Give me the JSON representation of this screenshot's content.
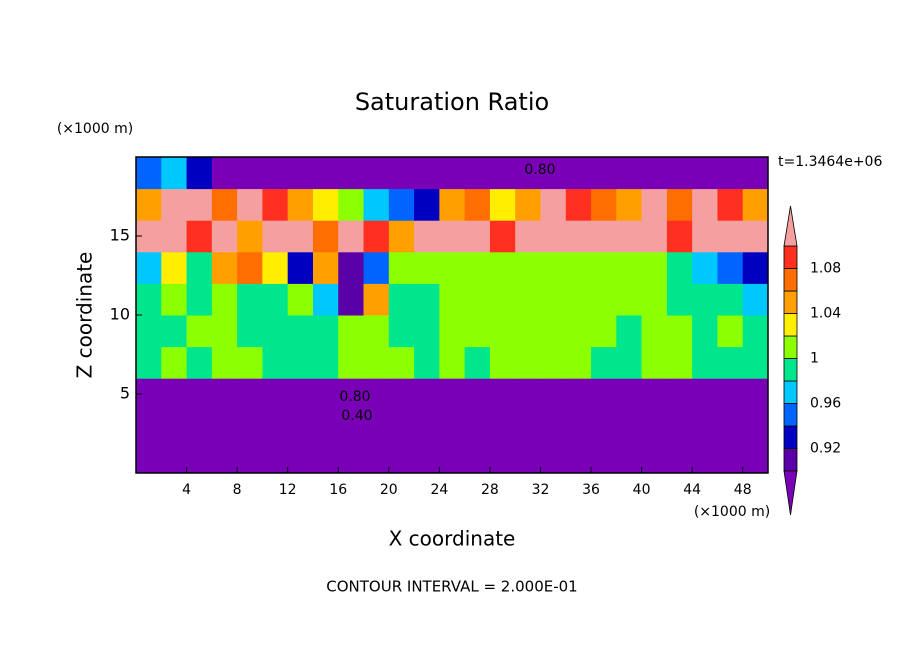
{
  "chart_data": {
    "type": "contour",
    "title": "Saturation Ratio",
    "xlabel": "X coordinate",
    "ylabel": "Z coordinate",
    "x_unit": "(×1000 m)",
    "y_unit": "(×1000 m)",
    "time_label": "t=1.3464e+06",
    "footer": "CONTOUR INTERVAL = 2.000E-01",
    "xlim": [
      0,
      50
    ],
    "ylim": [
      0,
      20
    ],
    "xticks": [
      4,
      8,
      12,
      16,
      20,
      24,
      28,
      32,
      36,
      40,
      44,
      48
    ],
    "yticks": [
      5,
      10,
      15
    ],
    "x": [
      1,
      3,
      5,
      7,
      9,
      11,
      13,
      15,
      17,
      19,
      21,
      23,
      25,
      27,
      29,
      31,
      33,
      35,
      37,
      39,
      41,
      43,
      45,
      47,
      49
    ],
    "z": [
      1,
      3,
      5,
      7,
      9,
      11,
      13,
      15,
      17,
      19
    ],
    "values": [
      [
        0.3,
        0.3,
        0.3,
        0.3,
        0.3,
        0.3,
        0.3,
        0.3,
        0.3,
        0.3,
        0.3,
        0.3,
        0.3,
        0.3,
        0.3,
        0.3,
        0.3,
        0.3,
        0.3,
        0.3,
        0.3,
        0.3,
        0.3,
        0.3,
        0.3
      ],
      [
        0.5,
        0.5,
        0.5,
        0.5,
        0.5,
        0.5,
        0.5,
        0.5,
        0.5,
        0.5,
        0.5,
        0.5,
        0.5,
        0.5,
        0.5,
        0.5,
        0.5,
        0.5,
        0.5,
        0.5,
        0.5,
        0.5,
        0.5,
        0.5,
        0.5
      ],
      [
        0.85,
        0.85,
        0.85,
        0.85,
        0.85,
        0.85,
        0.85,
        0.85,
        0.85,
        0.85,
        0.85,
        0.85,
        0.85,
        0.85,
        0.85,
        0.85,
        0.85,
        0.85,
        0.85,
        0.85,
        0.85,
        0.85,
        0.85,
        0.85,
        0.85
      ],
      [
        0.99,
        1.01,
        0.99,
        1.01,
        1.01,
        0.99,
        0.99,
        0.99,
        1.01,
        1.01,
        1.01,
        0.99,
        1.01,
        0.99,
        1.01,
        1.01,
        1.01,
        1.01,
        0.99,
        0.99,
        1.01,
        1.01,
        0.99,
        0.99,
        0.99
      ],
      [
        0.99,
        0.99,
        1.01,
        1.01,
        0.99,
        0.99,
        0.99,
        0.99,
        1.01,
        1.01,
        0.99,
        0.99,
        1.01,
        1.01,
        1.01,
        1.01,
        1.01,
        1.01,
        1.01,
        0.99,
        1.01,
        1.01,
        0.99,
        1.01,
        0.99
      ],
      [
        0.99,
        1.01,
        0.99,
        1.01,
        0.99,
        0.99,
        1.01,
        0.97,
        0.91,
        1.05,
        0.99,
        0.99,
        1.01,
        1.01,
        1.01,
        1.01,
        1.01,
        1.01,
        1.01,
        1.01,
        1.01,
        0.99,
        0.99,
        0.99,
        0.97
      ],
      [
        0.97,
        1.03,
        0.99,
        1.05,
        1.07,
        1.03,
        0.93,
        1.05,
        0.91,
        0.95,
        1.01,
        1.01,
        1.01,
        1.01,
        1.01,
        1.01,
        1.01,
        1.01,
        1.01,
        1.01,
        1.01,
        0.99,
        0.97,
        0.95,
        0.93
      ],
      [
        1.12,
        1.12,
        1.09,
        1.12,
        1.05,
        1.12,
        1.12,
        1.07,
        1.12,
        1.09,
        1.05,
        1.12,
        1.12,
        1.12,
        1.09,
        1.12,
        1.12,
        1.12,
        1.12,
        1.12,
        1.12,
        1.09,
        1.12,
        1.12,
        1.12
      ],
      [
        1.05,
        1.12,
        1.12,
        1.07,
        1.12,
        1.09,
        1.05,
        1.03,
        1.01,
        0.97,
        0.95,
        0.93,
        1.05,
        1.07,
        1.03,
        1.05,
        1.12,
        1.09,
        1.07,
        1.05,
        1.12,
        1.07,
        1.12,
        1.09,
        1.05
      ],
      [
        0.95,
        0.97,
        0.93,
        0.8,
        0.8,
        0.8,
        0.8,
        0.8,
        0.8,
        0.8,
        0.8,
        0.8,
        0.8,
        0.8,
        0.8,
        0.8,
        0.8,
        0.8,
        0.8,
        0.8,
        0.8,
        0.8,
        0.8,
        0.8,
        0.8
      ]
    ],
    "colorbar": {
      "levels": [
        0.9,
        0.92,
        0.94,
        0.96,
        0.98,
        1,
        1.02,
        1.04,
        1.06,
        1.08,
        1.1
      ],
      "colors": [
        "#7a00b8",
        "#5a00a8",
        "#0000c0",
        "#0064ff",
        "#00c8ff",
        "#00e68c",
        "#8cff00",
        "#ffee00",
        "#ffa000",
        "#ff6e00",
        "#ff3020",
        "#f5a0a0"
      ],
      "ticks": [
        0.92,
        0.96,
        1,
        1.04,
        1.08
      ]
    },
    "contours": {
      "values": [
        0.8,
        0.8,
        0.4
      ],
      "value_labels": [
        "0.80",
        "0.80",
        "0.40"
      ]
    }
  }
}
